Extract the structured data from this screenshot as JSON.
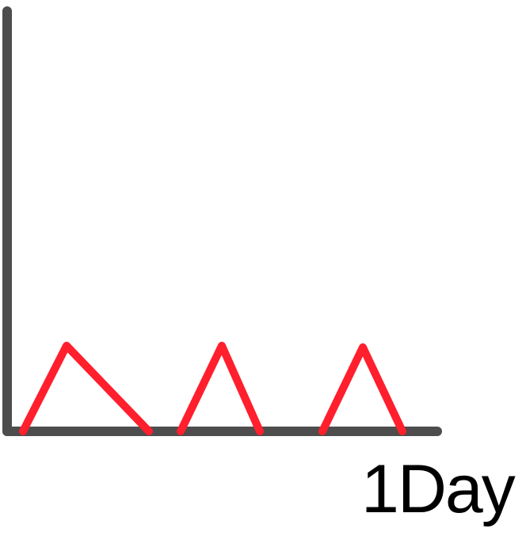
{
  "chart_data": {
    "type": "line",
    "title": "",
    "xlabel": "1Day",
    "ylabel": "",
    "series": [
      {
        "peaks": 3
      }
    ]
  },
  "colors": {
    "axis": "#4d4d4d",
    "series": "#ff1f2d"
  }
}
